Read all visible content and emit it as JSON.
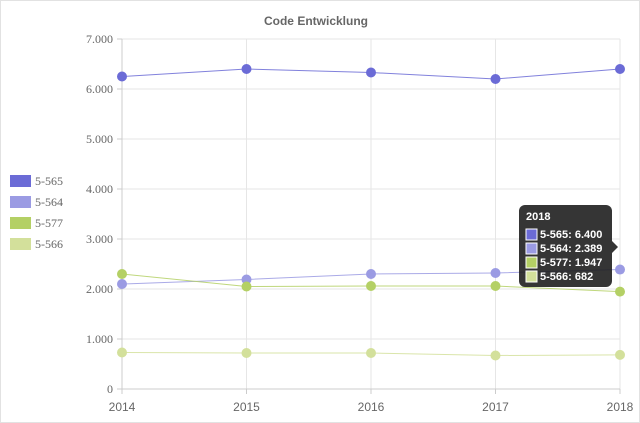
{
  "chart_data": {
    "type": "line",
    "title": "Code Entwicklung",
    "x": [
      "2014",
      "2015",
      "2016",
      "2017",
      "2018"
    ],
    "ylim": [
      0,
      7000
    ],
    "yticks": [
      "0",
      "1.000",
      "2.000",
      "3.000",
      "4.000",
      "5.000",
      "6.000",
      "7.000"
    ],
    "grid": true,
    "legend_position": "left",
    "series": [
      {
        "name": "5-565",
        "color": "#6b6bd6",
        "values": [
          6250,
          6400,
          6330,
          6200,
          6400
        ]
      },
      {
        "name": "5-564",
        "color": "#9b9be3",
        "values": [
          2100,
          2190,
          2300,
          2320,
          2389
        ]
      },
      {
        "name": "5-577",
        "color": "#b4d065",
        "values": [
          2300,
          2050,
          2060,
          2060,
          1947
        ]
      },
      {
        "name": "5-566",
        "color": "#d3e09b",
        "values": [
          730,
          720,
          720,
          670,
          682
        ]
      }
    ],
    "tooltip": {
      "title": "2018",
      "lines": [
        "5-565: 6.400",
        "5-564: 2.389",
        "5-577: 1.947",
        "5-566: 682"
      ]
    }
  }
}
